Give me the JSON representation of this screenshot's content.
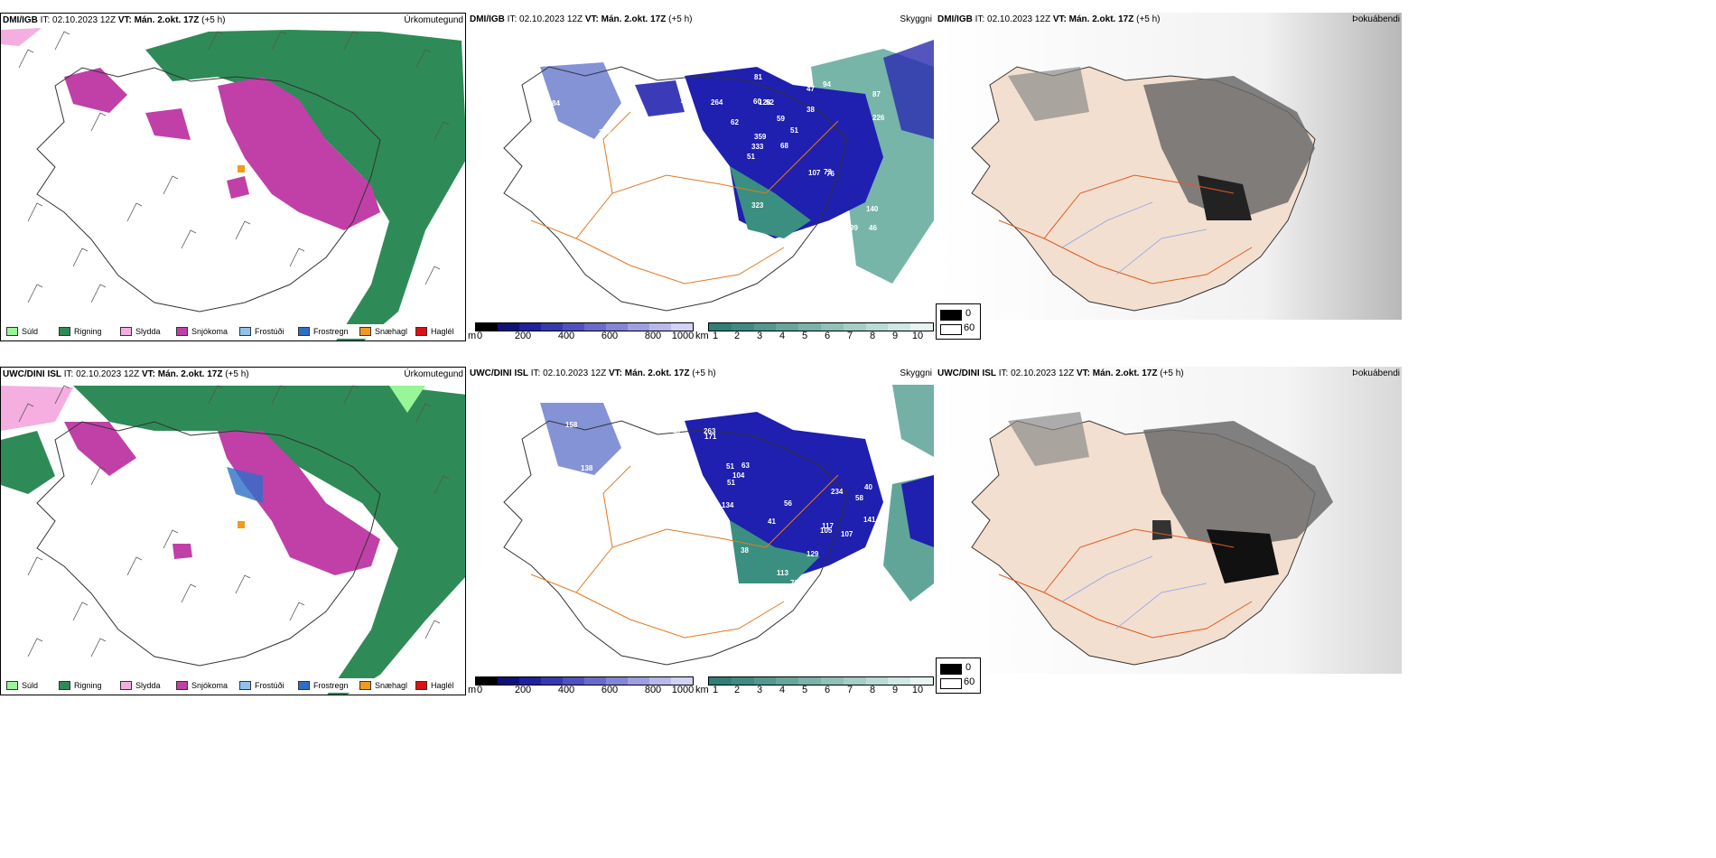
{
  "rows": [
    {
      "precip_header_model": "DMI/IGB",
      "cloud_header_model": "DMI/IGB",
      "fog_header_model": "DMI/IGB"
    },
    {
      "precip_header_model": "UWC/DINI ISL",
      "cloud_header_model": "UWC/DINI ISL",
      "fog_header_model": "UWC/DINI ISL"
    }
  ],
  "header": {
    "it_label": "IT:",
    "it_value": "02.10.2023 12Z",
    "vt_label": "VT:",
    "vt_value": "Mán. 2.okt. 17Z",
    "offset": "(+5 h)"
  },
  "titles": {
    "precip": "Úrkomutegund",
    "cloud": "Skyggni",
    "fog": "Þokuábendi"
  },
  "precip_legend": [
    {
      "label": "Súld",
      "color": "#98f598"
    },
    {
      "label": "Rigning",
      "color": "#2e8b57"
    },
    {
      "label": "Slydda",
      "color": "#f4aee0"
    },
    {
      "label": "Snjókoma",
      "color": "#c040a8"
    },
    {
      "label": "Frostúði",
      "color": "#8ec3f0"
    },
    {
      "label": "Frostregn",
      "color": "#2d6fc8"
    },
    {
      "label": "Snæhagl",
      "color": "#f09a20"
    },
    {
      "label": "Haglél",
      "color": "#dd1111"
    }
  ],
  "colorbars": {
    "m_unit": "m",
    "m_ticks": [
      "0",
      "200",
      "400",
      "600",
      "800",
      "1000"
    ],
    "km_unit": "km",
    "km_ticks": [
      "1",
      "2",
      "3",
      "4",
      "5",
      "6",
      "7",
      "8",
      "9",
      "10"
    ]
  },
  "fog_legend": {
    "dark_label": "0",
    "light_label": "60"
  },
  "cloud_labels_top": [
    "125",
    "84",
    "430",
    "225",
    "266",
    "84",
    "59",
    "52",
    "47",
    "68",
    "49",
    "46",
    "84",
    "87",
    "51",
    "38",
    "43",
    "60",
    "59",
    "47",
    "62",
    "82",
    "69",
    "128",
    "51",
    "76",
    "70",
    "81",
    "165",
    "107",
    "226",
    "333",
    "323",
    "359",
    "264",
    "94",
    "102",
    "99",
    "140",
    "73"
  ],
  "cloud_labels_bottom": [
    "171",
    "212",
    "85",
    "158",
    "138",
    "107",
    "98",
    "87",
    "51",
    "73",
    "62",
    "43",
    "48",
    "62",
    "38",
    "40",
    "41",
    "56",
    "63",
    "57",
    "52",
    "133",
    "51",
    "141",
    "288",
    "263",
    "117",
    "218",
    "171",
    "234",
    "113",
    "129",
    "104",
    "134",
    "58",
    "107",
    "105",
    "78"
  ]
}
